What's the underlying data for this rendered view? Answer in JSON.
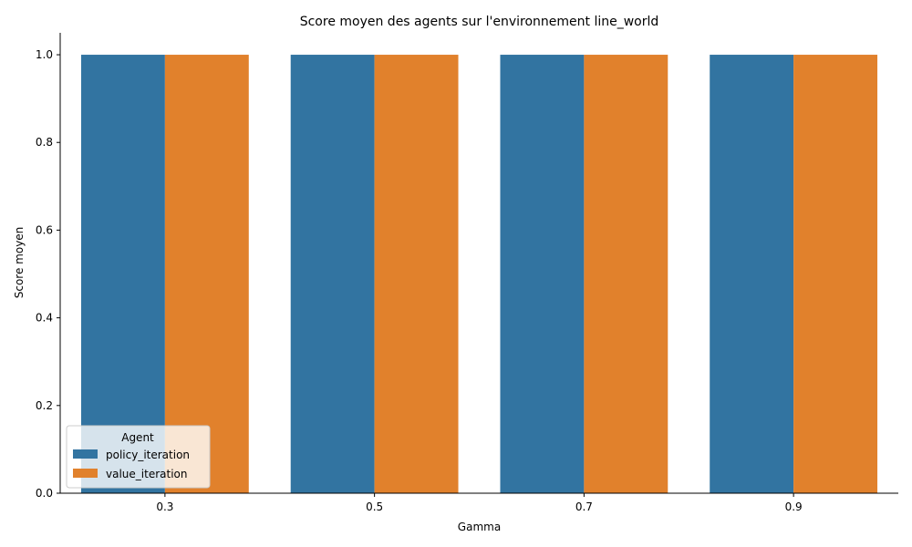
{
  "chart_data": {
    "type": "bar",
    "title": "Score moyen des agents sur l'environnement line_world",
    "xlabel": "Gamma",
    "ylabel": "Score moyen",
    "categories": [
      "0.3",
      "0.5",
      "0.7",
      "0.9"
    ],
    "series": [
      {
        "name": "policy_iteration",
        "color": "#3274a1",
        "values": [
          1.0,
          1.0,
          1.0,
          1.0
        ]
      },
      {
        "name": "value_iteration",
        "color": "#e1812c",
        "values": [
          1.0,
          1.0,
          1.0,
          1.0
        ]
      }
    ],
    "ylim": [
      0,
      1.05
    ],
    "yticks": [
      "0.0",
      "0.2",
      "0.4",
      "0.6",
      "0.8",
      "1.0"
    ],
    "grid": false,
    "legend": {
      "title": "Agent",
      "placement": "lower-left"
    }
  }
}
